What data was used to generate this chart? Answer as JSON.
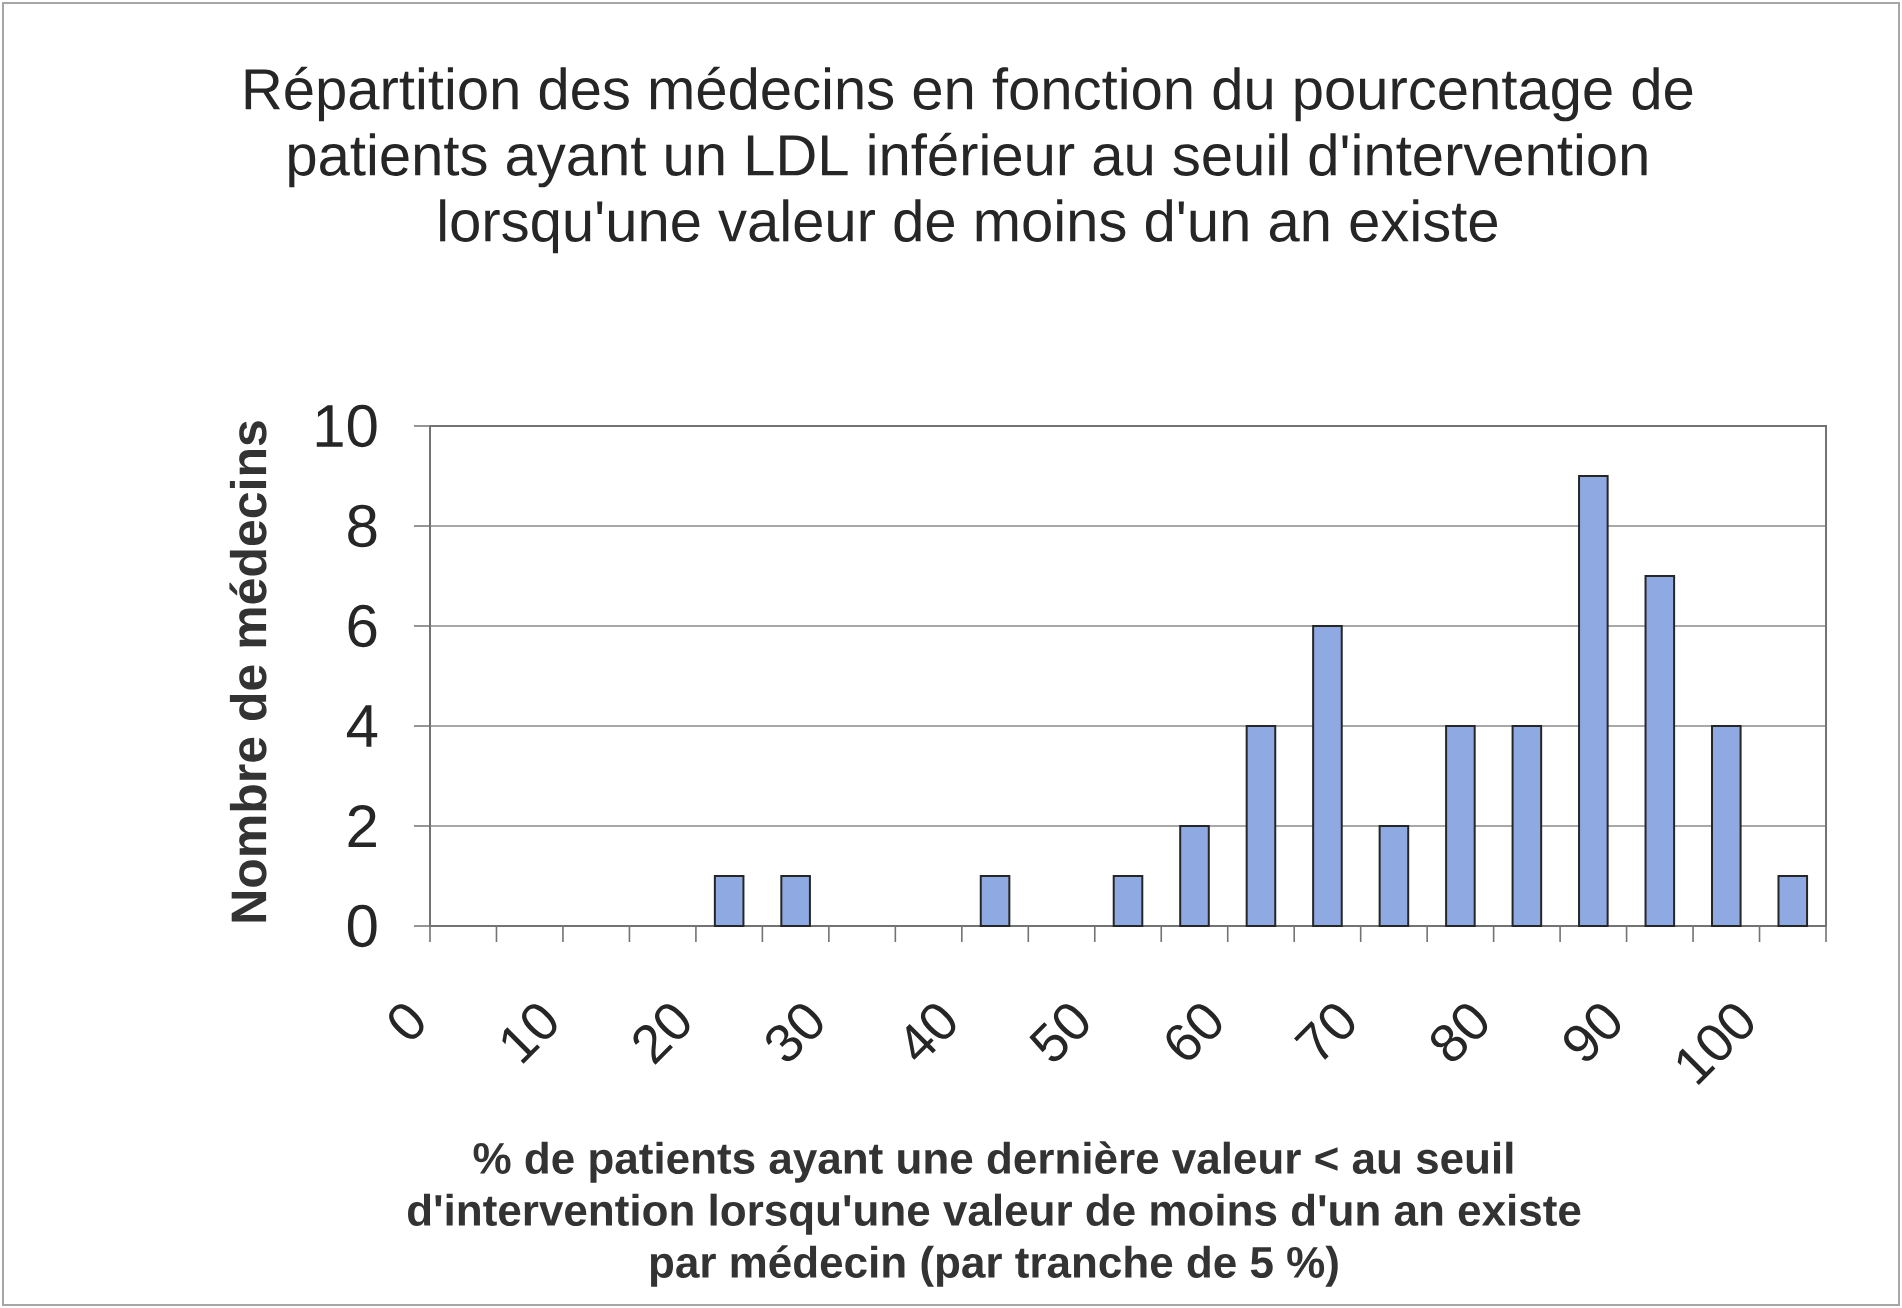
{
  "chart_data": {
    "type": "histogram",
    "title": "Répartition des médecins en fonction du pourcentage de patients ayant un LDL inférieur au seuil d'intervention lorsqu'une valeur de moins d'un an existe",
    "xlabel": "% de patients ayant une dernière valeur < au seuil d'intervention lorsqu'une valeur de moins d'un an existe par médecin (par tranche de 5 %)",
    "ylabel": "Nombre de médecins",
    "bins": [
      0,
      5,
      10,
      15,
      20,
      25,
      30,
      35,
      40,
      45,
      50,
      55,
      60,
      65,
      70,
      75,
      80,
      85,
      90,
      95,
      100,
      105
    ],
    "values": [
      0,
      0,
      0,
      0,
      1,
      1,
      0,
      0,
      1,
      0,
      1,
      2,
      4,
      6,
      2,
      4,
      4,
      9,
      7,
      4,
      1
    ],
    "color": "#8fa9e2",
    "xlim": [
      0,
      105
    ],
    "ylim": [
      0,
      10
    ],
    "xticks": [
      0,
      {
        "value": 5,
        "label": null
      },
      10,
      {
        "value": 15,
        "label": null
      },
      20,
      {
        "value": 25,
        "label": null
      },
      30,
      {
        "value": 35,
        "label": null
      },
      40,
      {
        "value": 45,
        "label": null
      },
      50,
      {
        "value": 55,
        "label": null
      },
      60,
      {
        "value": 65,
        "label": null
      },
      70,
      {
        "value": 75,
        "label": null
      },
      80,
      {
        "value": 85,
        "label": null
      },
      90,
      {
        "value": 95,
        "label": null
      },
      100,
      {
        "value": 105,
        "label": null
      }
    ],
    "yticks": [
      0,
      2,
      4,
      6,
      8,
      10
    ],
    "grid": "y"
  }
}
